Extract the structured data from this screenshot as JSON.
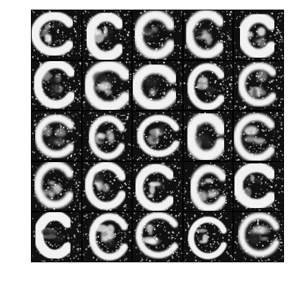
{
  "image": {
    "description_name": "grid-of-generated-letter-c-samples",
    "rows": 5,
    "cols": 5,
    "colors": {
      "background": "#ffffff",
      "ink": "#000000",
      "stroke": "#f2f2f2",
      "noise": "#ffffff"
    }
  }
}
